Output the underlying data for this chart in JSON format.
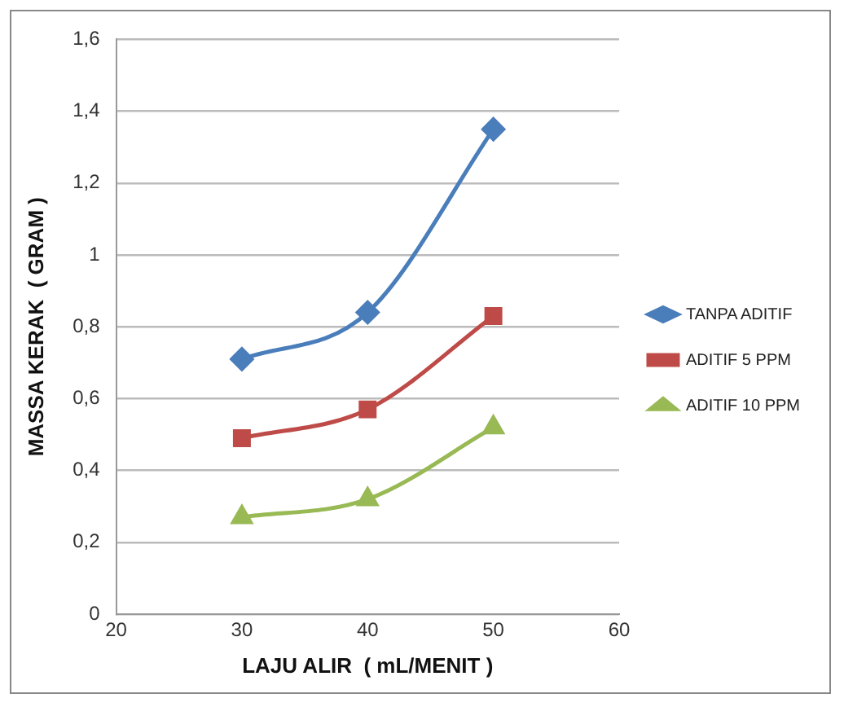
{
  "chart_data": {
    "type": "line",
    "xlabel": "LAJU ALIR  ( mL/MENIT )",
    "ylabel": "MASSA KERAK  ( GRAM )",
    "x": [
      30,
      40,
      50
    ],
    "series": [
      {
        "name": "TANPA ADITIF",
        "color": "#4a7ebb",
        "values": [
          0.71,
          0.84,
          1.35
        ],
        "marker": "diamond"
      },
      {
        "name": "ADITIF 5 PPM",
        "color": "#be4b48",
        "values": [
          0.49,
          0.57,
          0.83
        ],
        "marker": "square"
      },
      {
        "name": "ADITIF 10 PPM",
        "color": "#98b954",
        "values": [
          0.27,
          0.32,
          0.52
        ],
        "marker": "triangle"
      }
    ],
    "xlim": [
      20,
      60
    ],
    "xticks": [
      20,
      30,
      40,
      50,
      60
    ],
    "ylim": [
      0,
      1.6
    ],
    "yticks": [
      {
        "value": 0,
        "label": "0"
      },
      {
        "value": 0.2,
        "label": "0,2"
      },
      {
        "value": 0.4,
        "label": "0,4"
      },
      {
        "value": 0.6,
        "label": "0,6"
      },
      {
        "value": 0.8,
        "label": "0,8"
      },
      {
        "value": 1,
        "label": "1"
      },
      {
        "value": 1.2,
        "label": "1,2"
      },
      {
        "value": 1.4,
        "label": "1,4"
      },
      {
        "value": 1.6,
        "label": "1,6"
      }
    ],
    "grid": "y",
    "legend": "right",
    "line_style": "solid"
  }
}
